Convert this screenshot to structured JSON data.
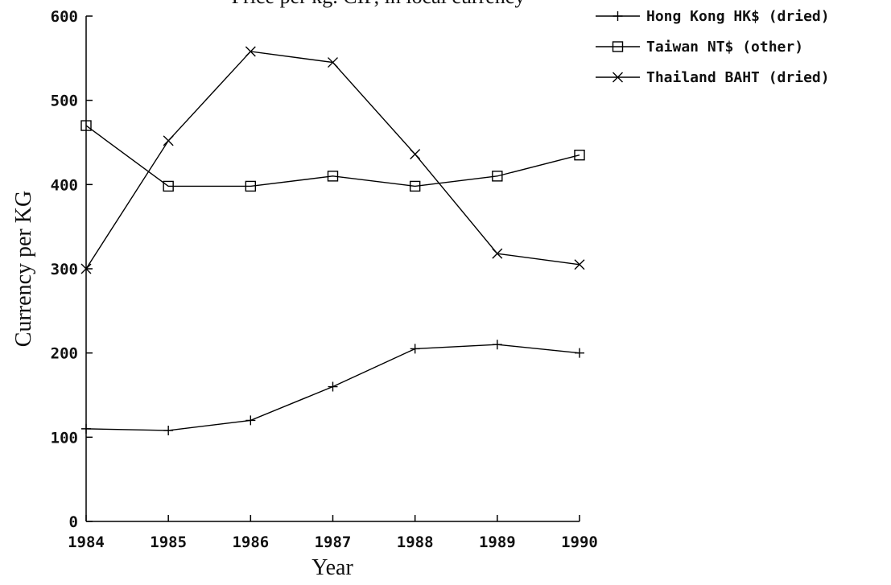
{
  "chart_data": {
    "type": "line",
    "title": "Price per kg. CIF, in local currency",
    "x_label": "Year",
    "y_label": "Currency per KG",
    "x": [
      1984,
      1985,
      1986,
      1987,
      1988,
      1989,
      1990
    ],
    "xlim": [
      1984,
      1990
    ],
    "xticks": [
      1984,
      1985,
      1986,
      1987,
      1988,
      1989,
      1990
    ],
    "ylim": [
      0,
      600
    ],
    "yticks": [
      0,
      100,
      200,
      300,
      400,
      500,
      600
    ],
    "grid": false,
    "legend": "top-right",
    "series": [
      {
        "name": "Hong Kong HK$ (dried)",
        "color": "#000000",
        "marker": "plus",
        "values": [
          110,
          108,
          120,
          160,
          205,
          210,
          200
        ]
      },
      {
        "name": "Taiwan NT$ (other)",
        "color": "#000000",
        "marker": "square",
        "values": [
          470,
          398,
          398,
          410,
          398,
          410,
          435
        ]
      },
      {
        "name": "Thailand BAHT (dried)",
        "color": "#000000",
        "marker": "x",
        "values": [
          300,
          452,
          558,
          545,
          436,
          318,
          305
        ]
      }
    ]
  }
}
